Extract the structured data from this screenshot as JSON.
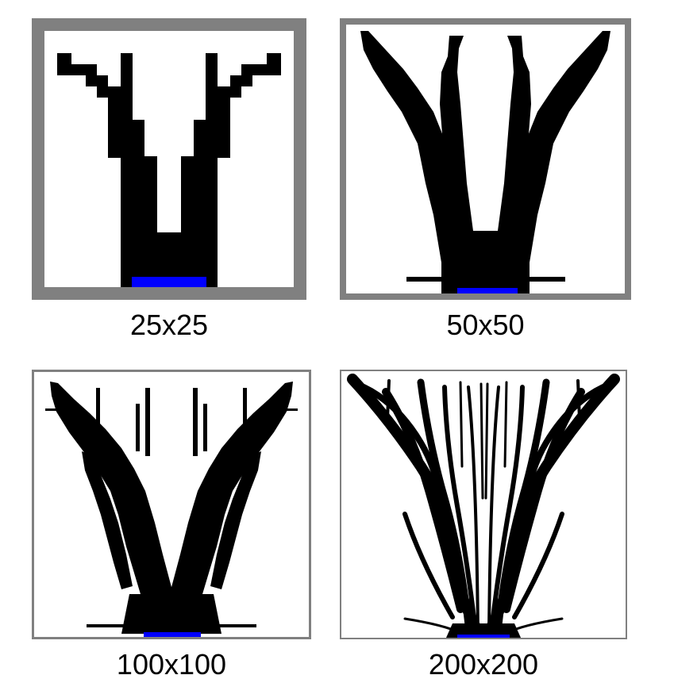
{
  "panels": [
    {
      "label": "25x25"
    },
    {
      "label": "50x50"
    },
    {
      "label": "100x100"
    },
    {
      "label": "200x200"
    }
  ],
  "colors": {
    "frame": "#808080",
    "structure": "#000000",
    "base": "#0000ff",
    "background": "#ffffff"
  }
}
